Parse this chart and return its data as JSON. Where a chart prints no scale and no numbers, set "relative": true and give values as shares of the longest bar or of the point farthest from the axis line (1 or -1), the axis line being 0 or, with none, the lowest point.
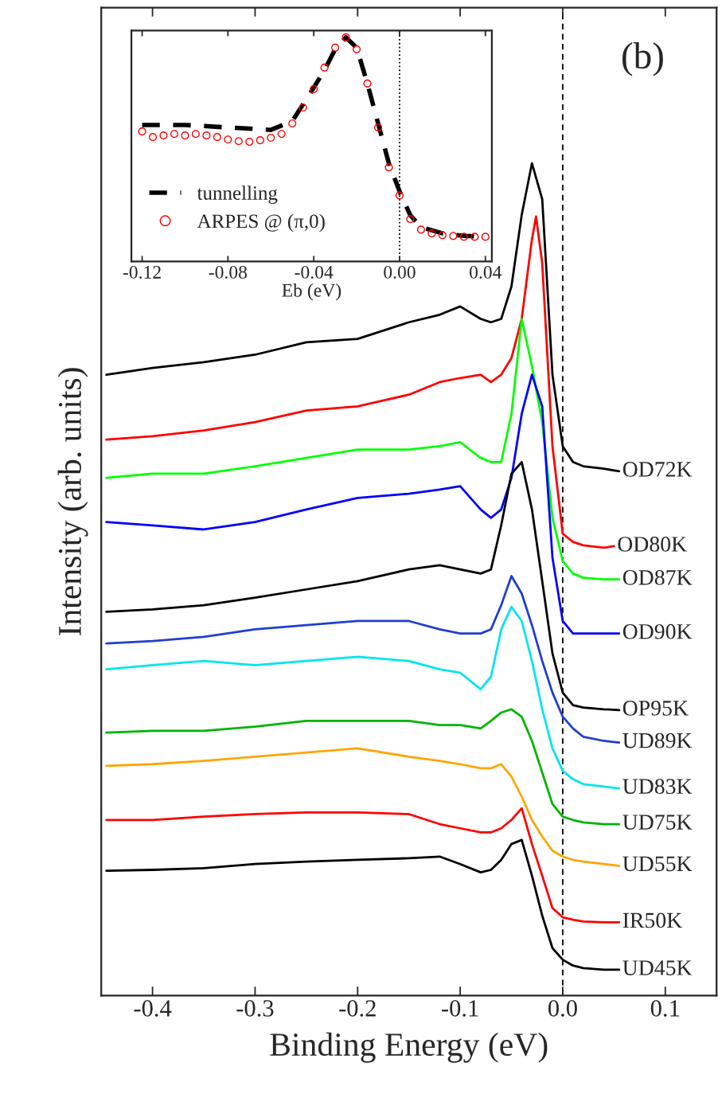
{
  "chart_data": [
    {
      "type": "line",
      "xlabel": "Binding Energy (eV)",
      "ylabel": "Intensity (arb. units)",
      "relative": true,
      "xlim": [
        -0.45,
        0.15
      ],
      "xticks": [
        -0.4,
        -0.3,
        -0.2,
        -0.1,
        {
          "value": 0,
          "label": "0.0"
        },
        0.1
      ],
      "legend": false,
      "grid": false,
      "marker": "none",
      "line_style": "solid",
      "annotations": [
        "(b)"
      ],
      "ref_lines": [
        {
          "axis": "x",
          "value": 0,
          "color": "#000000",
          "line_style": "dashed"
        }
      ],
      "x": [
        -0.445,
        -0.4,
        -0.35,
        -0.3,
        -0.25,
        -0.2,
        -0.15,
        -0.12,
        -0.1,
        -0.08,
        -0.07,
        -0.06,
        -0.05,
        -0.04,
        -0.03,
        -0.02,
        -0.01,
        0,
        0.01,
        0.02,
        0.04,
        0.055
      ],
      "series": [
        {
          "name": "OD72K",
          "color": "#000000",
          "values": [
            0.746,
            0.754,
            0.761,
            0.77,
            0.785,
            0.789,
            0.809,
            0.818,
            0.828,
            0.813,
            0.809,
            0.813,
            0.852,
            0.938,
            1.0,
            0.957,
            0.746,
            0.66,
            0.641,
            0.636,
            0.633,
            0.63
          ]
        },
        {
          "name": "OD80K",
          "color": "#ff0000",
          "x": [
            -0.445,
            -0.4,
            -0.35,
            -0.3,
            -0.25,
            -0.2,
            -0.15,
            -0.12,
            -0.1,
            -0.08,
            -0.07,
            -0.06,
            -0.05,
            -0.04,
            -0.03,
            -0.026,
            -0.02,
            -0.01,
            0,
            0.01,
            0.02,
            0.04,
            0.05
          ],
          "values": [
            0.668,
            0.672,
            0.679,
            0.689,
            0.703,
            0.708,
            0.722,
            0.737,
            0.742,
            0.746,
            0.737,
            0.746,
            0.766,
            0.813,
            0.909,
            0.936,
            0.88,
            0.66,
            0.555,
            0.545,
            0.541,
            0.538,
            0.54
          ]
        },
        {
          "name": "OD87K",
          "color": "#00ff00",
          "values": [
            0.622,
            0.627,
            0.627,
            0.636,
            0.646,
            0.656,
            0.656,
            0.66,
            0.665,
            0.646,
            0.641,
            0.641,
            0.699,
            0.813,
            0.756,
            0.689,
            0.574,
            0.522,
            0.507,
            0.502,
            0.5,
            0.5
          ]
        },
        {
          "name": "OD90K",
          "color": "#0000ff",
          "values": [
            0.569,
            0.565,
            0.56,
            0.569,
            0.584,
            0.598,
            0.603,
            0.608,
            0.612,
            0.584,
            0.574,
            0.584,
            0.622,
            0.699,
            0.746,
            0.708,
            0.526,
            0.45,
            0.435,
            0.435,
            0.435,
            0.435
          ]
        },
        {
          "name": "OP95K",
          "color": "#000000",
          "values": [
            0.461,
            0.464,
            0.469,
            0.478,
            0.488,
            0.498,
            0.512,
            0.517,
            0.512,
            0.507,
            0.512,
            0.565,
            0.627,
            0.641,
            0.584,
            0.498,
            0.411,
            0.364,
            0.349,
            0.346,
            0.344,
            0.343
          ]
        },
        {
          "name": "UD89K",
          "color": "#1f3fcf",
          "values": [
            0.423,
            0.426,
            0.431,
            0.44,
            0.445,
            0.45,
            0.45,
            0.44,
            0.435,
            0.435,
            0.44,
            0.469,
            0.504,
            0.483,
            0.445,
            0.402,
            0.364,
            0.335,
            0.321,
            0.311,
            0.306,
            0.304
          ]
        },
        {
          "name": "UD83K",
          "color": "#00e5ee",
          "values": [
            0.392,
            0.397,
            0.402,
            0.397,
            0.402,
            0.407,
            0.402,
            0.392,
            0.388,
            0.368,
            0.383,
            0.44,
            0.467,
            0.45,
            0.402,
            0.344,
            0.297,
            0.27,
            0.26,
            0.254,
            0.251,
            0.249
          ]
        },
        {
          "name": "UD75K",
          "color": "#00b400",
          "values": [
            0.316,
            0.318,
            0.318,
            0.323,
            0.33,
            0.33,
            0.33,
            0.325,
            0.325,
            0.321,
            0.33,
            0.34,
            0.344,
            0.335,
            0.306,
            0.268,
            0.23,
            0.215,
            0.211,
            0.208,
            0.206,
            0.206
          ]
        },
        {
          "name": "UD55K",
          "color": "#ffa500",
          "values": [
            0.276,
            0.278,
            0.282,
            0.287,
            0.292,
            0.297,
            0.287,
            0.282,
            0.278,
            0.273,
            0.273,
            0.278,
            0.263,
            0.239,
            0.211,
            0.191,
            0.174,
            0.167,
            0.163,
            0.161,
            0.158,
            0.156
          ]
        },
        {
          "name": "IR50K",
          "color": "#ff0000",
          "values": [
            0.211,
            0.211,
            0.215,
            0.218,
            0.22,
            0.22,
            0.218,
            0.206,
            0.201,
            0.196,
            0.196,
            0.201,
            0.211,
            0.225,
            0.182,
            0.144,
            0.105,
            0.094,
            0.091,
            0.089,
            0.088,
            0.088
          ]
        },
        {
          "name": "UD45K",
          "color": "#000000",
          "values": [
            0.15,
            0.151,
            0.153,
            0.158,
            0.161,
            0.163,
            0.165,
            0.167,
            0.158,
            0.148,
            0.151,
            0.163,
            0.182,
            0.187,
            0.144,
            0.096,
            0.057,
            0.043,
            0.036,
            0.033,
            0.031,
            0.031
          ]
        }
      ]
    },
    {
      "type": "line",
      "xlabel": "Eb (eV)",
      "relative": true,
      "xlim": [
        -0.125,
        0.043
      ],
      "xticks": [
        -0.12,
        -0.08,
        -0.04,
        {
          "value": 0,
          "label": "0.00"
        },
        0.04
      ],
      "legend": "bottom left",
      "grid": false,
      "ref_lines": [
        {
          "axis": "x",
          "value": 0,
          "color": "#000000",
          "line_style": "dotted"
        }
      ],
      "series": [
        {
          "name": "tunnelling",
          "type": "line",
          "color": "#000000",
          "line_style": "dashed",
          "marker": "none",
          "x": [
            -0.12,
            -0.1,
            -0.08,
            -0.06,
            -0.05,
            -0.04,
            -0.035,
            -0.03,
            -0.025,
            -0.02,
            -0.015,
            -0.01,
            -0.005,
            0,
            0.005,
            0.01,
            0.02,
            0.03,
            0.04
          ],
          "values": [
            0.609,
            0.609,
            0.598,
            0.587,
            0.626,
            0.776,
            0.854,
            0.947,
            1.0,
            0.954,
            0.794,
            0.616,
            0.438,
            0.313,
            0.206,
            0.153,
            0.125,
            0.114,
            0.11
          ]
        },
        {
          "name": "ARPES @ (π,0)",
          "type": "scatter",
          "color": "#ff0000",
          "marker": "circle",
          "x": [
            -0.12,
            -0.115,
            -0.11,
            -0.105,
            -0.1,
            -0.095,
            -0.09,
            -0.085,
            -0.08,
            -0.075,
            -0.07,
            -0.065,
            -0.06,
            -0.055,
            -0.05,
            -0.045,
            -0.04,
            -0.035,
            -0.03,
            -0.025,
            -0.02,
            -0.015,
            -0.01,
            -0.005,
            0,
            0.005,
            0.01,
            0.015,
            0.02,
            0.025,
            0.03,
            0.035,
            0.04
          ],
          "values": [
            0.58,
            0.555,
            0.562,
            0.569,
            0.562,
            0.569,
            0.562,
            0.555,
            0.544,
            0.537,
            0.534,
            0.541,
            0.552,
            0.569,
            0.616,
            0.687,
            0.769,
            0.865,
            0.954,
            1.0,
            0.947,
            0.794,
            0.598,
            0.42,
            0.295,
            0.189,
            0.142,
            0.125,
            0.117,
            0.114,
            0.11,
            0.11,
            0.11
          ]
        }
      ]
    }
  ]
}
